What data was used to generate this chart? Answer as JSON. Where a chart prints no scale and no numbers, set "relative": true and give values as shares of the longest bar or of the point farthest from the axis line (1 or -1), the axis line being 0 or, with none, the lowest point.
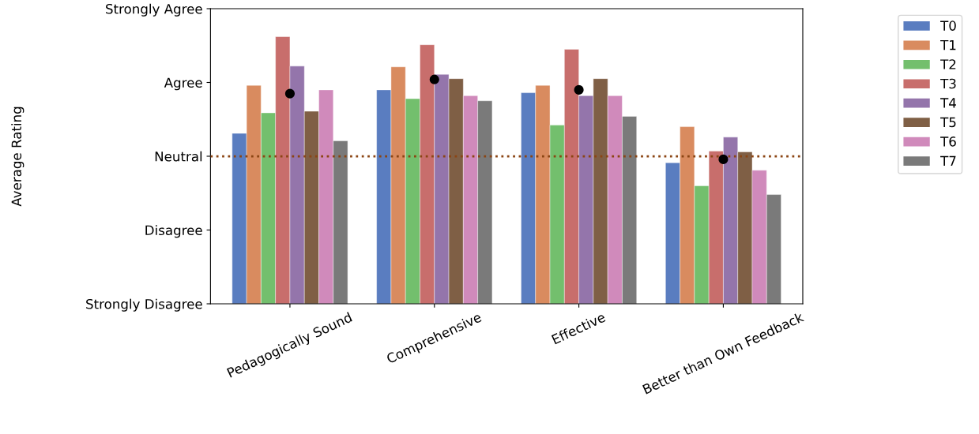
{
  "chart_data": {
    "type": "bar",
    "relative": true,
    "categories": [
      "Pedagogically Sound",
      "Comprehensive",
      "Effective",
      "Better than Own Feedback"
    ],
    "series": [
      {
        "name": "T0",
        "color": "#5a7dc0",
        "values": [
          0.638,
          0.801,
          0.79,
          0.528
        ]
      },
      {
        "name": "T1",
        "color": "#d98b5f",
        "values": [
          0.818,
          0.887,
          0.818,
          0.663
        ]
      },
      {
        "name": "T2",
        "color": "#73bf6d",
        "values": [
          0.715,
          0.768,
          0.669,
          0.442
        ]
      },
      {
        "name": "T3",
        "color": "#c86e6c",
        "values": [
          1.0,
          0.97,
          0.953,
          0.572
        ]
      },
      {
        "name": "T4",
        "color": "#9475ab",
        "values": [
          0.89,
          0.859,
          0.779,
          0.624
        ]
      },
      {
        "name": "T5",
        "color": "#7f5f45",
        "values": [
          0.721,
          0.843,
          0.843,
          0.569
        ]
      },
      {
        "name": "T6",
        "color": "#d08abb",
        "values": [
          0.801,
          0.779,
          0.779,
          0.5
        ]
      },
      {
        "name": "T7",
        "color": "#7a7a7a",
        "values": [
          0.61,
          0.76,
          0.702,
          0.409
        ]
      },
      {
        "type": "scatter",
        "color": "#000000",
        "x": [
          "Pedagogically Sound",
          "Comprehensive",
          "Effective",
          "Better than Own Feedback"
        ],
        "values": [
          0.787,
          0.84,
          0.801,
          0.541
        ]
      }
    ],
    "annotations": [
      "Average Rating",
      "Strongly Disagree",
      "Disagree",
      "Neutral",
      "Agree",
      "Strongly Agree"
    ],
    "ref_lines": [
      {
        "axis": "y",
        "value": 0.552,
        "color": "#8b4513",
        "line_style": "dotted"
      }
    ],
    "marker": "circle",
    "grid": false,
    "legend": "top right"
  }
}
